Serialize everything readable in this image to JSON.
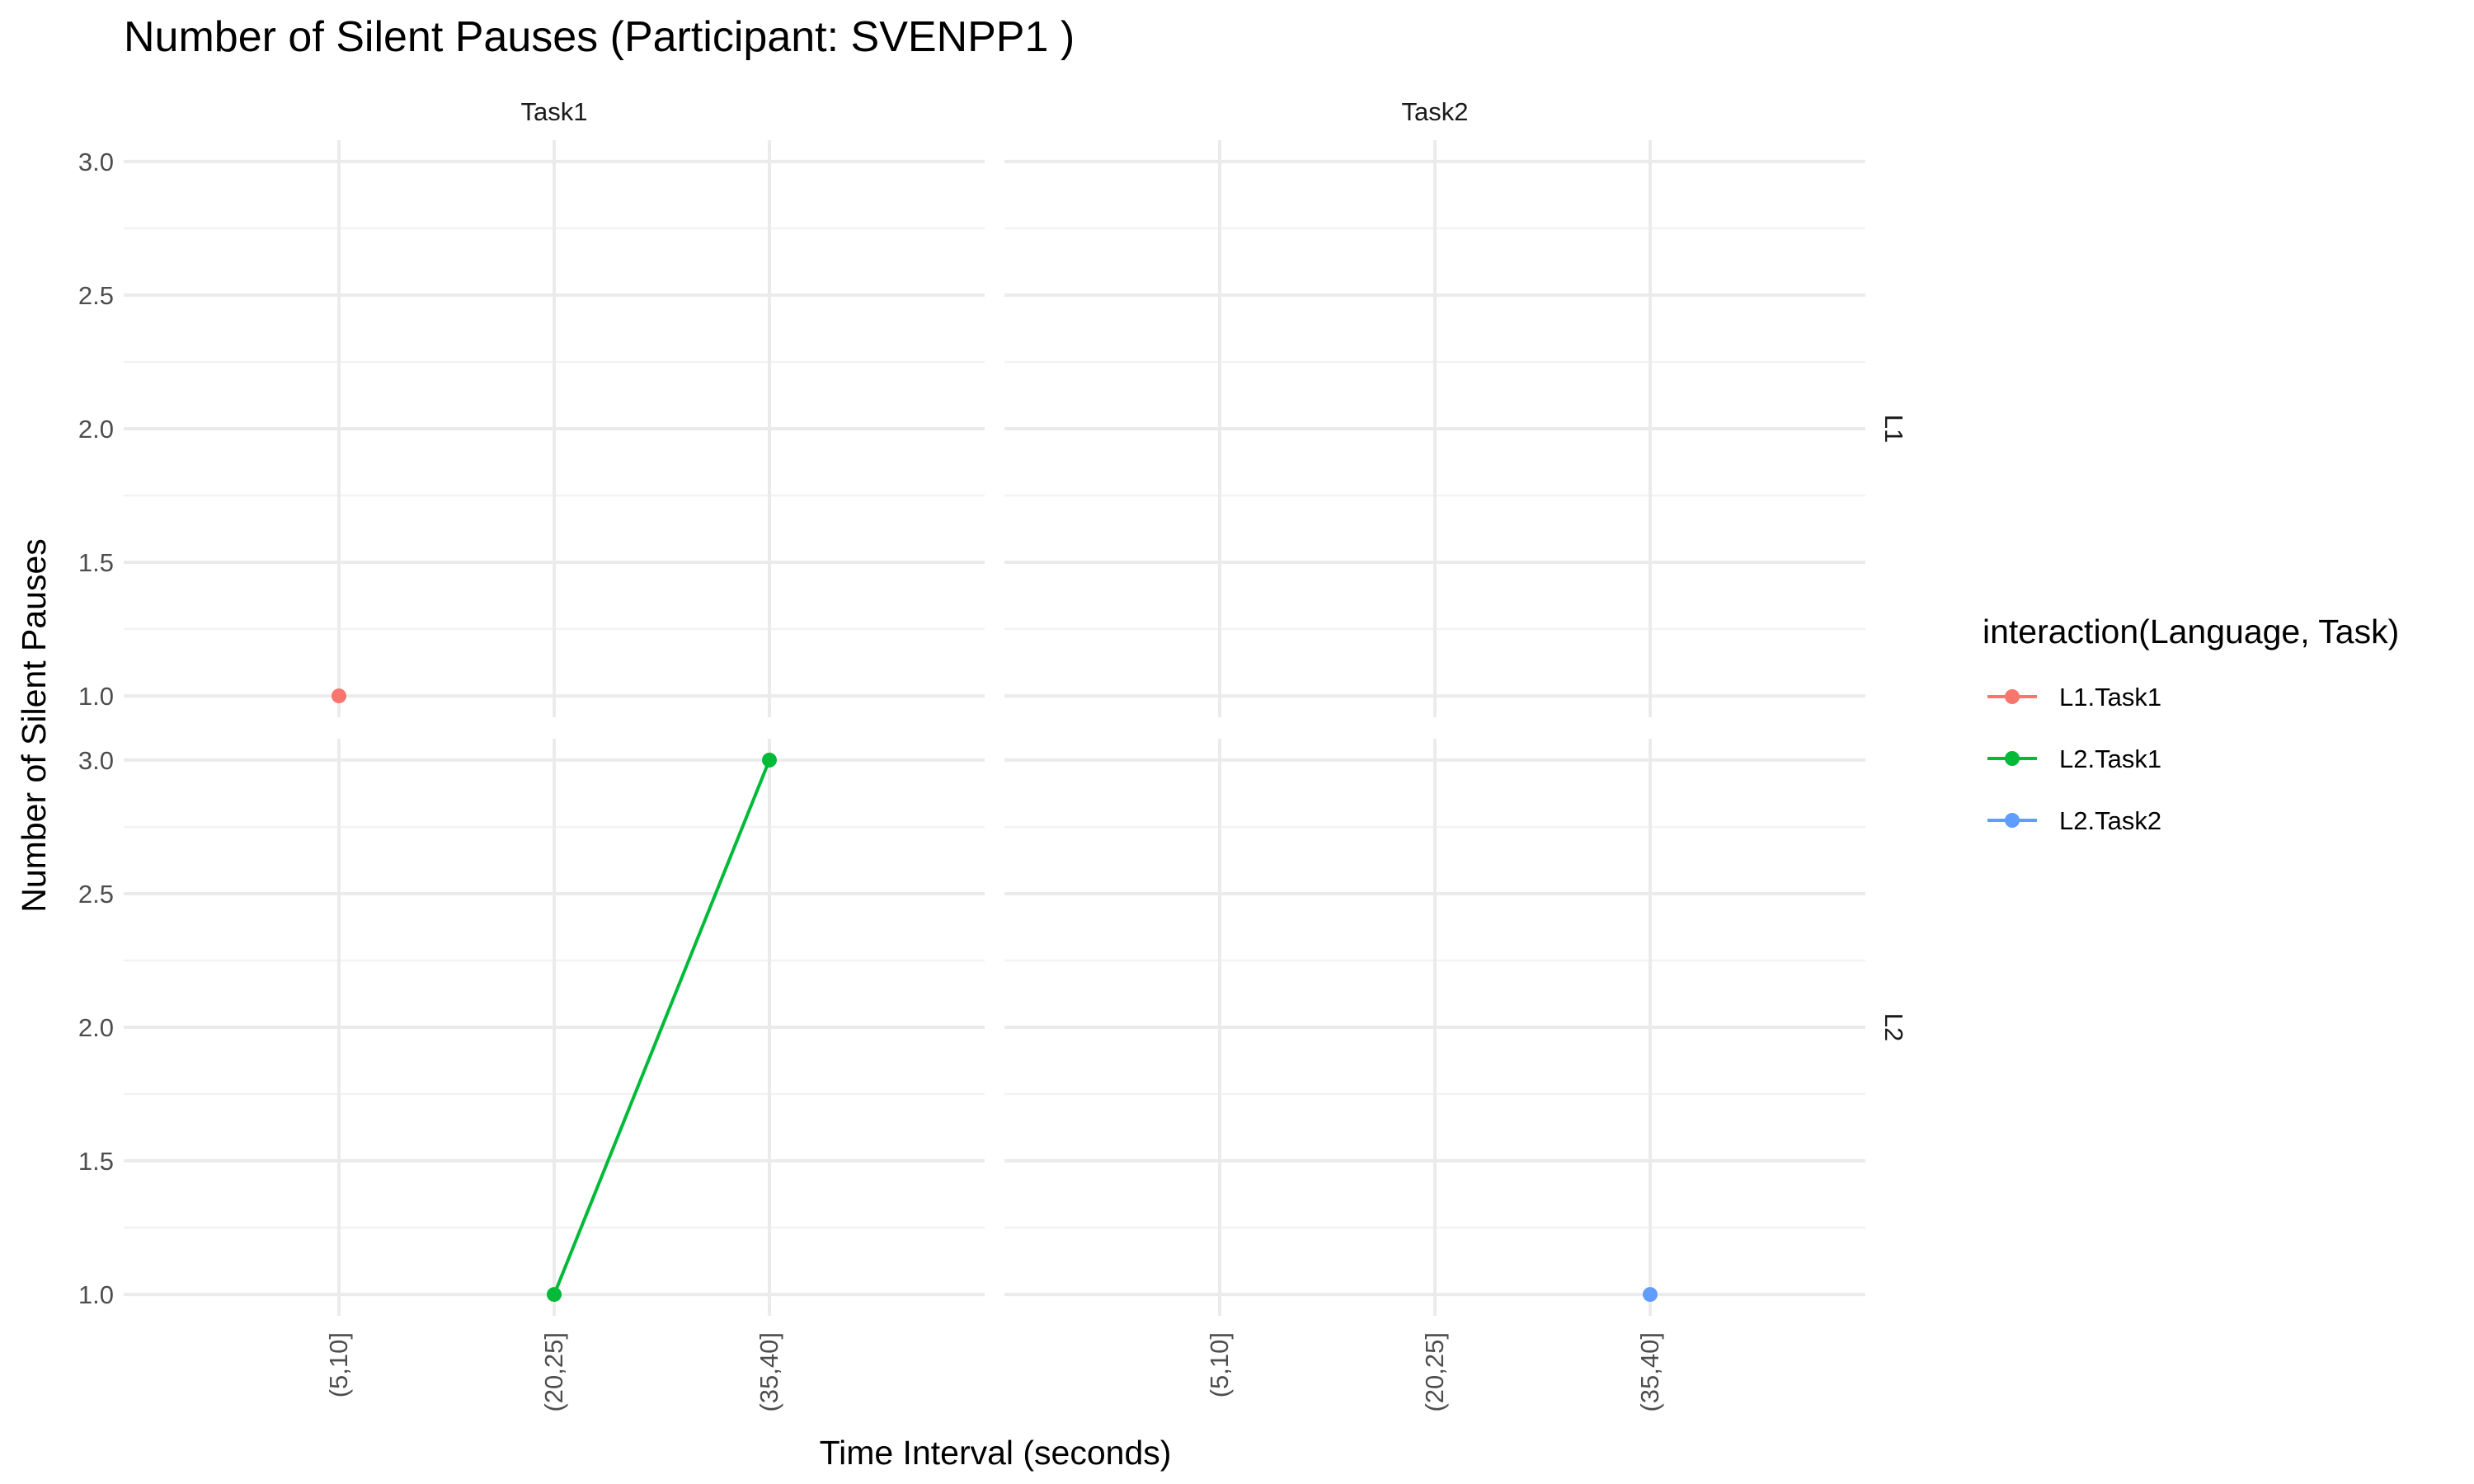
{
  "chart_data": {
    "type": "line",
    "title": "Number of Silent Pauses (Participant: SVENPP1 )",
    "xlabel": "Time Interval (seconds)",
    "ylabel": "Number of Silent Pauses",
    "facet_columns": [
      "Task1",
      "Task2"
    ],
    "facet_rows": [
      "L1",
      "L2"
    ],
    "categories": [
      "(5,10]",
      "(20,25]",
      "(35,40]"
    ],
    "ylim": [
      1,
      3
    ],
    "yticks": [
      "1.0",
      "1.5",
      "2.0",
      "2.5",
      "3.0"
    ],
    "grid": true,
    "legend": {
      "title": "interaction(Language, Task)",
      "position": "right",
      "entries": [
        {
          "label": "L1.Task1",
          "color": "#F8766D"
        },
        {
          "label": "L2.Task1",
          "color": "#00BA38"
        },
        {
          "label": "L2.Task2",
          "color": "#619CFF"
        }
      ]
    },
    "series": [
      {
        "name": "L1.Task1",
        "color": "#F8766D",
        "row": "L1",
        "col": "Task1",
        "points": [
          {
            "x": "(5,10]",
            "y": 1
          }
        ]
      },
      {
        "name": "L2.Task1",
        "color": "#00BA38",
        "row": "L2",
        "col": "Task1",
        "points": [
          {
            "x": "(20,25]",
            "y": 1
          },
          {
            "x": "(35,40]",
            "y": 3
          }
        ]
      },
      {
        "name": "L2.Task2",
        "color": "#619CFF",
        "row": "L2",
        "col": "Task2",
        "points": [
          {
            "x": "(35,40]",
            "y": 1
          }
        ]
      }
    ]
  }
}
